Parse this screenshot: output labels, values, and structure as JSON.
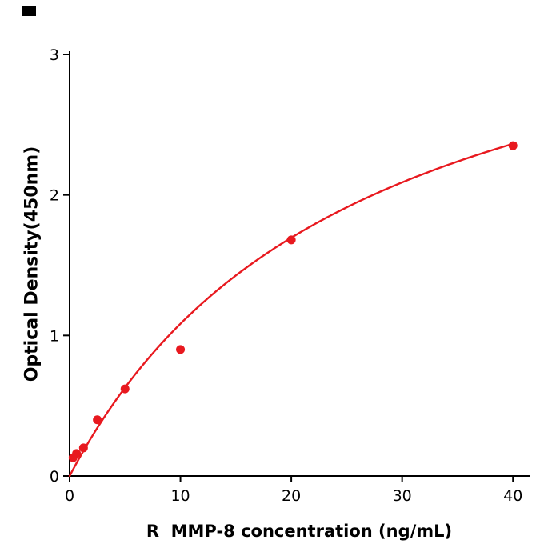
{
  "corner_mark": {
    "color": "#000000"
  },
  "chart_data": {
    "type": "scatter",
    "title": "",
    "xlabel": "R  MMP-8 concentration (ng/mL)",
    "ylabel": "Optical Density(450nm)",
    "x_ticks": [
      0,
      10,
      20,
      30,
      40
    ],
    "y_ticks": [
      0,
      1,
      2,
      3
    ],
    "xlim": [
      0,
      41.5
    ],
    "ylim": [
      0,
      3
    ],
    "grid": false,
    "legend": false,
    "points": [
      {
        "x": 0.313,
        "y": 0.13
      },
      {
        "x": 0.625,
        "y": 0.16
      },
      {
        "x": 1.25,
        "y": 0.2
      },
      {
        "x": 2.5,
        "y": 0.4
      },
      {
        "x": 5,
        "y": 0.62
      },
      {
        "x": 10,
        "y": 0.9
      },
      {
        "x": 20,
        "y": 1.68
      },
      {
        "x": 40,
        "y": 2.35
      }
    ],
    "fit_curve": {
      "type": "michaelis_menten",
      "a": 3.9,
      "b": 26.0,
      "x_start": 0,
      "x_end": 40.3
    },
    "point_color": "#e8191f",
    "line_color": "#e8191f",
    "axis_color": "#000000",
    "tick_label_color": "#000000"
  }
}
